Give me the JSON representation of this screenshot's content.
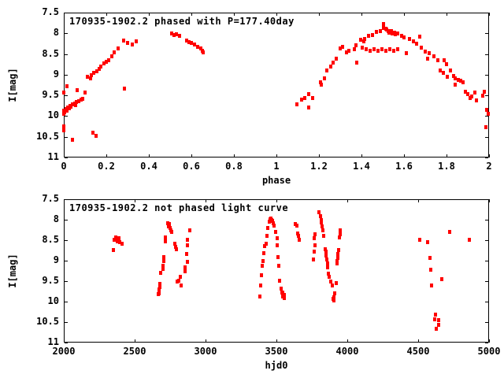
{
  "page": {
    "background": "#ffffff",
    "frame_color": "#000000",
    "text_color": "#000000",
    "marker_color": "#ff0000"
  },
  "chart_data": [
    {
      "type": "scatter",
      "title": "170935-1902.2 phased with P=177.40day",
      "xlabel": "phase",
      "ylabel": "I[mag]",
      "xlim": [
        0,
        2
      ],
      "ylim": [
        7.5,
        11
      ],
      "y_axis_inverted_mag_scale": true,
      "grid": false,
      "legend": "none",
      "xticks": [
        0,
        0.2,
        0.4,
        0.6,
        0.8,
        1,
        1.2,
        1.4,
        1.6,
        1.8,
        2
      ],
      "xtick_labels": [
        "0",
        "0.2",
        "0.4",
        "0.6",
        "0.8",
        "1",
        "1.2",
        "1.4",
        "1.6",
        "1.8",
        "2"
      ],
      "yticks": [
        7.5,
        8,
        8.5,
        9,
        9.5,
        10,
        10.5,
        11
      ],
      "ytick_labels": [
        "7.5",
        "8",
        "8.5",
        "9",
        "9.5",
        "10",
        "10.5",
        "11"
      ],
      "marker": "filled-square",
      "marker_color": "#ff0000",
      "points": [
        [
          0.0,
          10.25
        ],
        [
          0.0,
          10.35
        ],
        [
          0.0,
          9.44
        ],
        [
          0.0,
          9.95
        ],
        [
          0.0,
          9.88
        ],
        [
          0.005,
          9.91
        ],
        [
          0.01,
          9.84
        ],
        [
          0.015,
          9.29
        ],
        [
          0.015,
          9.87
        ],
        [
          0.02,
          9.8
        ],
        [
          0.025,
          9.83
        ],
        [
          0.03,
          9.76
        ],
        [
          0.035,
          9.79
        ],
        [
          0.04,
          9.73
        ],
        [
          0.041,
          10.58
        ],
        [
          0.05,
          9.7
        ],
        [
          0.055,
          9.74
        ],
        [
          0.06,
          9.67
        ],
        [
          0.063,
          9.38
        ],
        [
          0.07,
          9.64
        ],
        [
          0.08,
          9.62
        ],
        [
          0.09,
          9.6
        ],
        [
          0.1,
          9.44
        ],
        [
          0.11,
          9.06
        ],
        [
          0.125,
          9.1
        ],
        [
          0.13,
          9.02
        ],
        [
          0.137,
          10.41
        ],
        [
          0.14,
          8.97
        ],
        [
          0.152,
          10.49
        ],
        [
          0.155,
          8.92
        ],
        [
          0.165,
          8.87
        ],
        [
          0.175,
          8.81
        ],
        [
          0.19,
          8.74
        ],
        [
          0.2,
          8.7
        ],
        [
          0.21,
          8.66
        ],
        [
          0.225,
          8.56
        ],
        [
          0.237,
          8.47
        ],
        [
          0.256,
          8.37
        ],
        [
          0.28,
          8.18
        ],
        [
          0.285,
          9.34
        ],
        [
          0.3,
          8.24
        ],
        [
          0.322,
          8.28
        ],
        [
          0.34,
          8.2
        ],
        [
          0.507,
          8.02
        ],
        [
          0.52,
          8.06
        ],
        [
          0.53,
          8.03
        ],
        [
          0.544,
          8.08
        ],
        [
          0.578,
          8.19
        ],
        [
          0.59,
          8.22
        ],
        [
          0.6,
          8.25
        ],
        [
          0.615,
          8.28
        ],
        [
          0.63,
          8.33
        ],
        [
          0.645,
          8.38
        ],
        [
          0.652,
          8.43
        ],
        [
          0.655,
          8.47
        ],
        [
          1.096,
          9.72
        ],
        [
          1.119,
          9.61
        ],
        [
          1.133,
          9.57
        ],
        [
          1.152,
          9.48
        ],
        [
          1.152,
          9.8
        ],
        [
          1.17,
          9.57
        ],
        [
          1.207,
          9.19
        ],
        [
          1.211,
          9.25
        ],
        [
          1.226,
          9.1
        ],
        [
          1.237,
          8.91
        ],
        [
          1.256,
          8.81
        ],
        [
          1.267,
          8.72
        ],
        [
          1.281,
          8.62
        ],
        [
          1.3,
          8.37
        ],
        [
          1.31,
          8.34
        ],
        [
          1.33,
          8.47
        ],
        [
          1.34,
          8.43
        ],
        [
          1.367,
          8.39
        ],
        [
          1.374,
          8.3
        ],
        [
          1.378,
          8.72
        ],
        [
          1.396,
          8.17
        ],
        [
          1.403,
          8.36
        ],
        [
          1.411,
          8.2
        ],
        [
          1.415,
          8.14
        ],
        [
          1.422,
          8.39
        ],
        [
          1.433,
          8.07
        ],
        [
          1.44,
          8.43
        ],
        [
          1.452,
          8.05
        ],
        [
          1.459,
          8.39
        ],
        [
          1.47,
          7.98
        ],
        [
          1.478,
          8.43
        ],
        [
          1.49,
          7.95
        ],
        [
          1.496,
          8.39
        ],
        [
          1.504,
          7.79
        ],
        [
          1.504,
          7.88
        ],
        [
          1.515,
          8.43
        ],
        [
          1.515,
          7.9
        ],
        [
          1.52,
          7.92
        ],
        [
          1.526,
          7.95
        ],
        [
          1.53,
          8.0
        ],
        [
          1.533,
          8.39
        ],
        [
          1.54,
          7.96
        ],
        [
          1.545,
          8.02
        ],
        [
          1.552,
          8.43
        ],
        [
          1.555,
          7.99
        ],
        [
          1.56,
          8.04
        ],
        [
          1.57,
          8.01
        ],
        [
          1.57,
          8.39
        ],
        [
          1.589,
          8.07
        ],
        [
          1.6,
          8.11
        ],
        [
          1.611,
          8.49
        ],
        [
          1.625,
          8.14
        ],
        [
          1.645,
          8.2
        ],
        [
          1.66,
          8.26
        ],
        [
          1.674,
          8.09
        ],
        [
          1.681,
          8.36
        ],
        [
          1.7,
          8.45
        ],
        [
          1.71,
          8.62
        ],
        [
          1.72,
          8.49
        ],
        [
          1.74,
          8.56
        ],
        [
          1.76,
          8.66
        ],
        [
          1.77,
          8.91
        ],
        [
          1.785,
          8.96
        ],
        [
          1.79,
          8.66
        ],
        [
          1.8,
          8.76
        ],
        [
          1.803,
          9.06
        ],
        [
          1.82,
          8.91
        ],
        [
          1.835,
          9.04
        ],
        [
          1.84,
          9.1
        ],
        [
          1.84,
          9.25
        ],
        [
          1.855,
          9.13
        ],
        [
          1.866,
          9.15
        ],
        [
          1.877,
          9.19
        ],
        [
          1.89,
          9.42
        ],
        [
          1.9,
          9.48
        ],
        [
          1.91,
          9.57
        ],
        [
          1.92,
          9.53
        ],
        [
          1.935,
          9.44
        ],
        [
          1.94,
          9.63
        ],
        [
          1.97,
          9.52
        ],
        [
          1.977,
          9.42
        ],
        [
          1.985,
          10.27
        ],
        [
          1.99,
          9.86
        ],
        [
          1.995,
          9.95
        ]
      ]
    },
    {
      "type": "scatter",
      "title": "170935-1902.2 not phased light curve",
      "xlabel": "hjd0",
      "ylabel": "I[mag]",
      "xlim": [
        2000,
        5000
      ],
      "ylim": [
        7.5,
        11
      ],
      "y_axis_inverted_mag_scale": true,
      "grid": false,
      "legend": "none",
      "xticks": [
        2000,
        2500,
        3000,
        3500,
        4000,
        4500,
        5000
      ],
      "xtick_labels": [
        "2000",
        "2500",
        "3000",
        "3500",
        "4000",
        "4500",
        "5000"
      ],
      "yticks": [
        7.5,
        8,
        8.5,
        9,
        9.5,
        10,
        10.5,
        11
      ],
      "ytick_labels": [
        "7.5",
        "8",
        "8.5",
        "9",
        "9.5",
        "10",
        "10.5",
        "11"
      ],
      "marker": "filled-square",
      "marker_color": "#ff0000",
      "points": [
        [
          2350,
          8.75
        ],
        [
          2356,
          8.5
        ],
        [
          2367,
          8.44
        ],
        [
          2372,
          8.48
        ],
        [
          2378,
          8.54
        ],
        [
          2389,
          8.46
        ],
        [
          2394,
          8.56
        ],
        [
          2411,
          8.6
        ],
        [
          2666,
          9.83
        ],
        [
          2672,
          9.72
        ],
        [
          2672,
          9.8
        ],
        [
          2678,
          9.58
        ],
        [
          2678,
          9.65
        ],
        [
          2683,
          9.31
        ],
        [
          2700,
          9.13
        ],
        [
          2700,
          9.22
        ],
        [
          2706,
          8.92
        ],
        [
          2706,
          9.02
        ],
        [
          2717,
          8.44
        ],
        [
          2717,
          8.54
        ],
        [
          2733,
          8.1
        ],
        [
          2739,
          8.17
        ],
        [
          2744,
          8.12
        ],
        [
          2750,
          8.21
        ],
        [
          2755,
          8.27
        ],
        [
          2761,
          8.31
        ],
        [
          2783,
          8.6
        ],
        [
          2789,
          8.68
        ],
        [
          2794,
          8.73
        ],
        [
          2800,
          9.52
        ],
        [
          2811,
          9.5
        ],
        [
          2822,
          9.4
        ],
        [
          2828,
          9.62
        ],
        [
          2856,
          9.17
        ],
        [
          2856,
          9.27
        ],
        [
          2866,
          8.85
        ],
        [
          2872,
          8.5
        ],
        [
          2872,
          8.63
        ],
        [
          2872,
          9.04
        ],
        [
          2889,
          8.27
        ],
        [
          3386,
          9.88
        ],
        [
          3391,
          9.62
        ],
        [
          3397,
          9.37
        ],
        [
          3400,
          9.13
        ],
        [
          3404,
          9.02
        ],
        [
          3411,
          8.83
        ],
        [
          3415,
          8.65
        ],
        [
          3426,
          8.6
        ],
        [
          3433,
          8.4
        ],
        [
          3439,
          8.21
        ],
        [
          3450,
          8.06
        ],
        [
          3456,
          8.0
        ],
        [
          3461,
          7.98
        ],
        [
          3467,
          8.02
        ],
        [
          3472,
          8.04
        ],
        [
          3478,
          8.1
        ],
        [
          3483,
          8.15
        ],
        [
          3494,
          8.31
        ],
        [
          3505,
          8.46
        ],
        [
          3508,
          8.63
        ],
        [
          3513,
          8.92
        ],
        [
          3518,
          9.13
        ],
        [
          3522,
          9.5
        ],
        [
          3531,
          9.69
        ],
        [
          3538,
          9.79
        ],
        [
          3542,
          9.83
        ],
        [
          3547,
          9.79
        ],
        [
          3547,
          9.88
        ],
        [
          3553,
          9.85
        ],
        [
          3553,
          9.92
        ],
        [
          3633,
          8.12
        ],
        [
          3642,
          8.15
        ],
        [
          3650,
          8.35
        ],
        [
          3656,
          8.4
        ],
        [
          3661,
          8.5
        ],
        [
          3761,
          8.98
        ],
        [
          3767,
          8.46
        ],
        [
          3767,
          8.79
        ],
        [
          3772,
          8.37
        ],
        [
          3772,
          8.63
        ],
        [
          3800,
          7.83
        ],
        [
          3811,
          7.92
        ],
        [
          3817,
          8.02
        ],
        [
          3817,
          8.08
        ],
        [
          3822,
          8.17
        ],
        [
          3828,
          8.27
        ],
        [
          3833,
          8.4
        ],
        [
          3844,
          8.73
        ],
        [
          3850,
          8.79
        ],
        [
          3850,
          8.88
        ],
        [
          3856,
          8.98
        ],
        [
          3861,
          9.08
        ],
        [
          3861,
          9.17
        ],
        [
          3867,
          9.33
        ],
        [
          3872,
          9.4
        ],
        [
          3883,
          9.52
        ],
        [
          3894,
          9.62
        ],
        [
          3900,
          9.94
        ],
        [
          3906,
          9.9
        ],
        [
          3906,
          9.98
        ],
        [
          3911,
          9.81
        ],
        [
          3922,
          9.56
        ],
        [
          3928,
          9.02
        ],
        [
          3928,
          9.08
        ],
        [
          3933,
          8.85
        ],
        [
          3933,
          8.94
        ],
        [
          3939,
          8.75
        ],
        [
          3944,
          8.44
        ],
        [
          3950,
          8.27
        ],
        [
          3950,
          8.37
        ],
        [
          4511,
          8.5
        ],
        [
          4567,
          8.56
        ],
        [
          4583,
          8.94
        ],
        [
          4589,
          9.23
        ],
        [
          4594,
          9.62
        ],
        [
          4617,
          10.44
        ],
        [
          4622,
          10.33
        ],
        [
          4628,
          10.67
        ],
        [
          4644,
          10.46
        ],
        [
          4644,
          10.58
        ],
        [
          4667,
          9.46
        ],
        [
          4722,
          8.31
        ],
        [
          4861,
          8.5
        ]
      ]
    }
  ]
}
